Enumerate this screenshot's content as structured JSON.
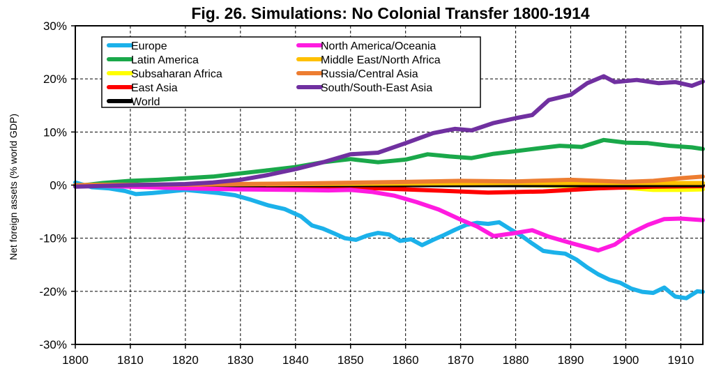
{
  "chart_data": {
    "type": "line",
    "title": "Fig. 26. Simulations: No Colonial Transfer 1800-1914",
    "xlabel": "",
    "ylabel": "Net foreign assets (% world GDP)",
    "xlim": [
      1800,
      1914
    ],
    "ylim": [
      -30,
      30
    ],
    "x_ticks": [
      1800,
      1810,
      1820,
      1830,
      1840,
      1850,
      1860,
      1870,
      1880,
      1890,
      1900,
      1910
    ],
    "x_tick_labels": [
      "1800",
      "1810",
      "1820",
      "1830",
      "1840",
      "1850",
      "1860",
      "1870",
      "1880",
      "1890",
      "1900",
      "1910"
    ],
    "y_ticks": [
      -30,
      -20,
      -10,
      0,
      10,
      20,
      30
    ],
    "y_tick_labels": [
      "-30%",
      "-20%",
      "-10%",
      "0%",
      "10%",
      "20%",
      "30%"
    ],
    "grid": true,
    "legend_position": "top-left",
    "series": [
      {
        "name": "Europe",
        "color": "#1BB1EA",
        "x": [
          1800,
          1803,
          1806,
          1809,
          1811,
          1814,
          1817,
          1820,
          1823,
          1826,
          1829,
          1832,
          1835,
          1838,
          1841,
          1843,
          1845,
          1847,
          1849,
          1851,
          1853,
          1855,
          1857,
          1859,
          1861,
          1863,
          1865,
          1867,
          1869,
          1871,
          1873,
          1875,
          1877,
          1879,
          1881,
          1883,
          1885,
          1887,
          1889,
          1891,
          1893,
          1895,
          1897,
          1899,
          1901,
          1903,
          1905,
          1907,
          1909,
          1911,
          1913,
          1914
        ],
        "y": [
          0.5,
          -0.4,
          -0.6,
          -1.1,
          -1.7,
          -1.5,
          -1.2,
          -0.9,
          -1.2,
          -1.5,
          -1.9,
          -2.8,
          -3.8,
          -4.5,
          -5.9,
          -7.6,
          -8.2,
          -9.1,
          -10.0,
          -10.3,
          -9.5,
          -9.0,
          -9.3,
          -10.5,
          -10.2,
          -11.3,
          -10.3,
          -9.4,
          -8.4,
          -7.5,
          -7.1,
          -7.3,
          -7.0,
          -8.3,
          -9.5,
          -11.0,
          -12.4,
          -12.7,
          -12.9,
          -14.0,
          -15.5,
          -16.8,
          -17.8,
          -18.4,
          -19.5,
          -20.1,
          -20.3,
          -19.3,
          -21.0,
          -21.3,
          -20.0,
          -20.1
        ]
      },
      {
        "name": "Latin America",
        "color": "#1AA84A",
        "x": [
          1800,
          1805,
          1810,
          1815,
          1820,
          1825,
          1830,
          1835,
          1840,
          1845,
          1850,
          1855,
          1860,
          1864,
          1868,
          1872,
          1876,
          1880,
          1884,
          1888,
          1892,
          1896,
          1900,
          1904,
          1908,
          1912,
          1914
        ],
        "y": [
          -0.2,
          0.4,
          0.8,
          1.0,
          1.3,
          1.6,
          2.2,
          2.8,
          3.4,
          4.3,
          4.9,
          4.3,
          4.8,
          5.8,
          5.4,
          5.1,
          5.9,
          6.4,
          6.9,
          7.4,
          7.2,
          8.5,
          8.0,
          7.9,
          7.4,
          7.1,
          6.8
        ]
      },
      {
        "name": "Subsaharan Africa",
        "color": "#FFFF00",
        "x": [
          1800,
          1820,
          1840,
          1860,
          1880,
          1890,
          1900,
          1905,
          1910,
          1914
        ],
        "y": [
          0.0,
          0.1,
          0.3,
          0.2,
          0.0,
          -0.2,
          -0.5,
          -0.9,
          -0.9,
          -0.8
        ]
      },
      {
        "name": "East Asia",
        "color": "#FF0000",
        "x": [
          1800,
          1820,
          1840,
          1855,
          1865,
          1875,
          1885,
          1895,
          1905,
          1914
        ],
        "y": [
          0.0,
          -0.2,
          -0.4,
          -0.6,
          -1.0,
          -1.4,
          -1.2,
          -0.6,
          -0.3,
          -0.2
        ]
      },
      {
        "name": "World",
        "color": "#000000",
        "x": [
          1800,
          1914
        ],
        "y": [
          0.0,
          0.0
        ]
      },
      {
        "name": "North America/Oceania",
        "color": "#FF1BE0",
        "x": [
          1800,
          1810,
          1820,
          1830,
          1840,
          1846,
          1850,
          1854,
          1858,
          1862,
          1866,
          1870,
          1873,
          1876,
          1880,
          1883,
          1886,
          1890,
          1895,
          1898,
          1901,
          1904,
          1907,
          1910,
          1914
        ],
        "y": [
          0.0,
          -0.3,
          -0.6,
          -0.8,
          -0.9,
          -1.0,
          -0.9,
          -1.3,
          -2.0,
          -3.2,
          -4.6,
          -6.5,
          -7.8,
          -9.6,
          -9.0,
          -8.5,
          -9.7,
          -10.9,
          -12.3,
          -11.2,
          -9.0,
          -7.5,
          -6.4,
          -6.3,
          -6.6
        ]
      },
      {
        "name": "Middle East/North Africa",
        "color": "#FFC000",
        "x": [
          1800,
          1820,
          1840,
          1860,
          1880,
          1900,
          1914
        ],
        "y": [
          0.0,
          0.1,
          0.2,
          0.3,
          0.4,
          0.4,
          0.4
        ]
      },
      {
        "name": "Russia/Central Asia",
        "color": "#ED7D31",
        "x": [
          1800,
          1820,
          1840,
          1860,
          1870,
          1880,
          1890,
          1900,
          1905,
          1910,
          1914
        ],
        "y": [
          0.0,
          0.1,
          0.3,
          0.6,
          0.8,
          0.7,
          1.0,
          0.6,
          0.8,
          1.3,
          1.6
        ]
      },
      {
        "name": "South/South-East Asia",
        "color": "#7030A0",
        "x": [
          1800,
          1810,
          1820,
          1825,
          1830,
          1835,
          1840,
          1845,
          1850,
          1855,
          1860,
          1865,
          1869,
          1872,
          1876,
          1880,
          1883,
          1886,
          1890,
          1893,
          1896,
          1898,
          1902,
          1906,
          1909,
          1912,
          1914
        ],
        "y": [
          -0.3,
          0.0,
          0.2,
          0.5,
          1.0,
          1.9,
          3.0,
          4.3,
          5.8,
          6.1,
          7.9,
          9.8,
          10.6,
          10.3,
          11.7,
          12.6,
          13.2,
          16.0,
          17.0,
          19.2,
          20.5,
          19.4,
          19.8,
          19.2,
          19.4,
          18.7,
          19.5
        ]
      }
    ]
  }
}
